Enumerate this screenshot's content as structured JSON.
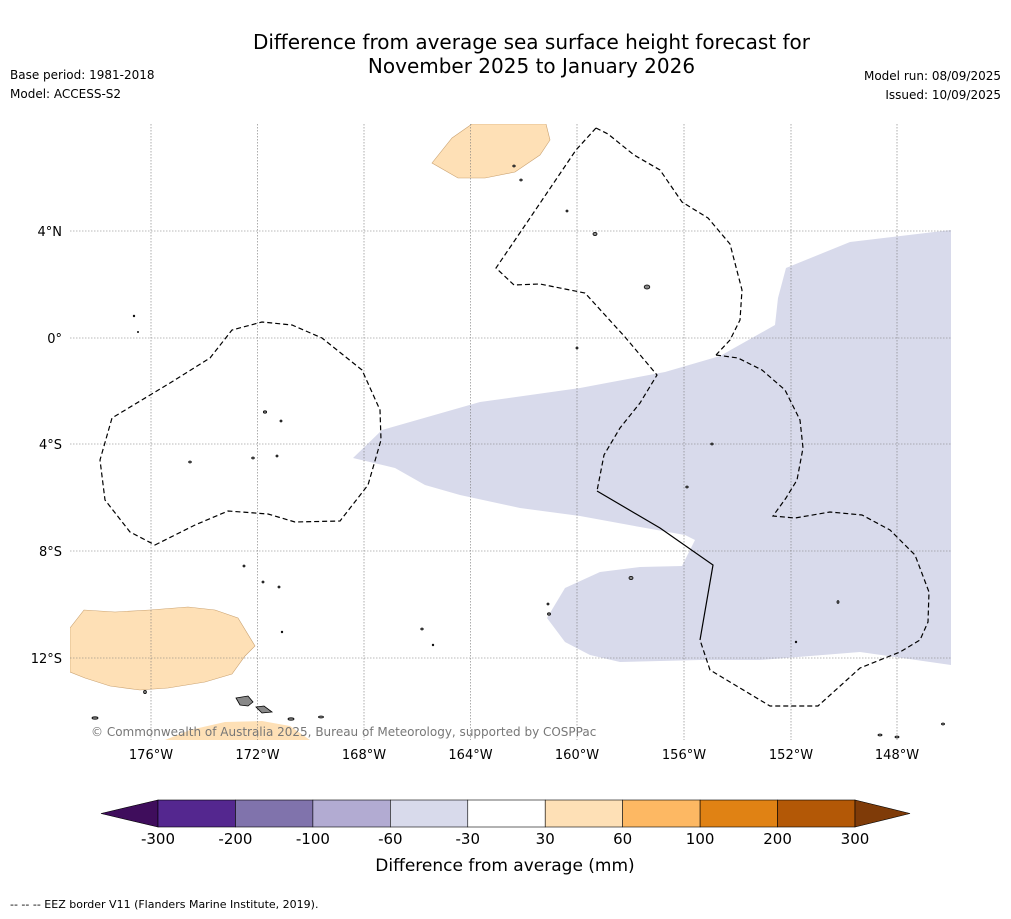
{
  "title_line1": "Difference from average sea surface height forecast for",
  "title_line2": "November 2025 to January 2026",
  "base_period": "Base period: 1981-2018",
  "model": "Model: ACCESS-S2",
  "model_run": "Model run: 08/09/2025",
  "issued": "Issued: 10/09/2025",
  "copyright": "© Commonwealth of Australia 2025, Bureau of Meteorology, supported by COSPPac",
  "lat_ticks": [
    "4°N",
    "0°",
    "4°S",
    "8°S",
    "12°S"
  ],
  "lon_ticks": [
    "176°W",
    "172°W",
    "168°W",
    "164°W",
    "160°W",
    "156°W",
    "152°W",
    "148°W"
  ],
  "colorbar": {
    "label": "Difference from average (mm)",
    "ticks": [
      "-300",
      "-200",
      "-100",
      "-60",
      "-30",
      "30",
      "60",
      "100",
      "200",
      "300"
    ],
    "colors": [
      "#3f0d5c",
      "#54278f",
      "#8073ac",
      "#b2abd2",
      "#d8daeb",
      "#ffffff",
      "#fee0b6",
      "#fdb863",
      "#e08214",
      "#b35806",
      "#7f3b08"
    ]
  },
  "footnote": "--  --  -- EEZ border V11 (Flanders Marine Institute, 2019)."
}
